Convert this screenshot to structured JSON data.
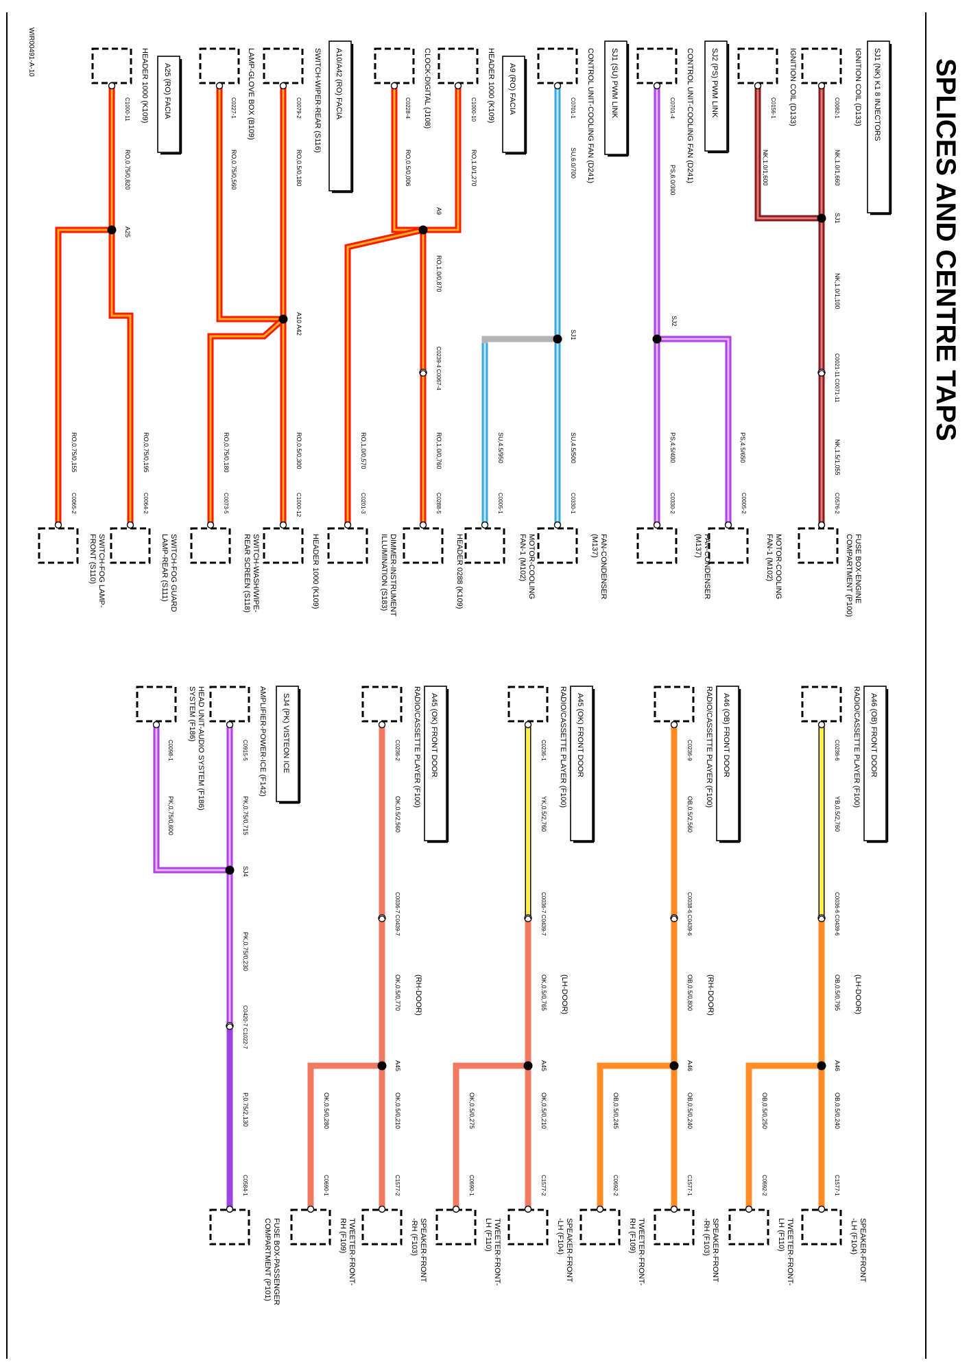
{
  "page": {
    "title": "SPLICES AND CENTRE TAPS",
    "code": "WIR00491-A-10"
  },
  "colors": {
    "red": "#ff1a00",
    "red_stripe": "#ffb020",
    "blue": "#3aa9e0",
    "blue_stripe": "#bde6f7",
    "purple": "#b040e8",
    "purple_stripe": "#e5b8f8",
    "maroon": "#8a1c1c",
    "maroon_stripe": "#e07c7c",
    "orange": "#ff8c26",
    "orange_edge": "#000000",
    "salmon": "#f07a62",
    "yellow": "#fff03a",
    "grey": "#b4b4b4"
  },
  "circuits": [
    {
      "name": "SJ1 (NK) K1 8 INJECTORS",
      "top": "IGNITION COIL (D133)",
      "top_pin": "C0082-1",
      "wire_top": "NK,1.0/1,660",
      "splice": "SJ1",
      "wire_mid": "NK,1.0/1,100",
      "inline": "C0021-11 C0071-11",
      "wire_bottom": "NK,1.5/1,055",
      "bottom_pin": "C0576-2",
      "bottom": [
        "FUSE BOX-ENGINE",
        "COMPARTMENT (P100)"
      ]
    },
    {
      "name": "",
      "top": "IGNITION COIL (D133)",
      "top_pin": "C0156-1",
      "wire_top": "NK,1.0/1,600"
    },
    {
      "name": "SJ2 (PS) PWM LINK",
      "top": "CONTROL UNIT-COOLING FAN (D241)",
      "top_pin": "C0701-4",
      "wire_top": "PS,6.0/300",
      "splice": "SJ2",
      "wire_bottom": "PS,4.5/400",
      "bottom_pin": "C0330-2",
      "bottom": [
        "FAN-CONDENSER",
        "(M137)"
      ],
      "branch_wire": "PS,4.5/650",
      "branch_pin": "C0005-2",
      "branch": [
        "MOTOR-COOLING",
        "FAN-1 (M102)"
      ]
    },
    {
      "name": "SJ1 (SU) PWM LINK",
      "top": "CONTROL UNIT-COOLING FAN (D241)",
      "top_pin": "C0701-1",
      "wire_top": "SU,6.0/700",
      "splice": "SJ1",
      "wire_bottom": "SU,4.5/500",
      "bottom_pin": "C0330-1",
      "bottom": [
        "FAN-CONDENSER",
        "(M137)"
      ],
      "branch_wire": "SU,4.5/950",
      "branch_pin": "C0005-1",
      "branch": [
        "MOTOR-COOLING",
        "FAN-1 (M102)"
      ]
    },
    {
      "name": "A9 (RO) FACIA",
      "top": "HEADER 1000 (K109)",
      "top_pin": "C1000-10",
      "wire_top": "RO,1.0/1,270",
      "splice": "A9",
      "wire_mid": "RO,1.0/0,870",
      "inline": "C0239-4 C0067-4",
      "wire_bottom": "RO,1.0/0,760",
      "bottom_pin": "C0288-5",
      "bottom": [
        "HEADER 0288 (K109)"
      ]
    },
    {
      "name": "",
      "top": "CLOCK-DIGITAL (J108)",
      "top_pin": "C0228-4",
      "wire_top": "RO,0.5/0,006",
      "branch_wire": "RO,1.0/0,570",
      "branch_pin": "C0201-3",
      "branch": [
        "DIMMER-INSTRUMENT",
        "ILLUMINATION (S183)"
      ]
    },
    {
      "name": "A10/A42 (RO) FACIA",
      "top": "SWITCH-WIPER-REAR (S116)",
      "top_pin": "C0079-2",
      "wire_top": "RO,0.5/0,180",
      "splice": "A10 A42",
      "wire_bottom": "RO,0.5/0,300",
      "bottom_pin": "C1000-12",
      "bottom": [
        "HEADER 1000 (K109)"
      ],
      "branch_wire": "RO,0.75/0,180",
      "branch_pin": "C0073-5",
      "branch": [
        "SWITCH-WASH/WIPE-",
        "REAR SCREEN (S118)"
      ]
    },
    {
      "name": "",
      "top": "LAMP-GLOVE BOX (B109)",
      "top_pin": "C0227-1",
      "wire_top": "RO,0.75/0,560"
    },
    {
      "name": "A25 (RO) FACIA",
      "top": "HEADER 1000 (K109)",
      "top_pin": "C1000-11",
      "wire_top": "RO,0.75/0,820",
      "splice": "A25",
      "wire_bottom": "RO,0.75/0,195",
      "bottom_pin": "C0064-2",
      "bottom": [
        "SWITCH-FOG GUARD",
        "LAMP-REAR (S111)"
      ],
      "branch_wire": "RO,0.75/0,155",
      "branch_pin": "C0065-2",
      "branch": [
        "SWITCH-FOG LAMP-",
        "FRONT (S110)"
      ]
    },
    {
      "name": "A46 (OB) FRONT DOOR",
      "top": "RADIO/CASSETTE PLAYER (F100)",
      "top_pin": "C0236-6",
      "wire_top": "YB,0.5/2,760",
      "inline": "C0036-6 C0439-6",
      "note": "(LH-DOOR)",
      "wire_mid": "OB,0.5/0,795",
      "splice": "A46",
      "wire_bottom": "OB,0.5/0,240",
      "bottom_pin": "C1577-1",
      "bottom": [
        "SPEAKER-FRONT",
        "-LH (F104)"
      ],
      "branch_wire": "OB,0.5/0,250",
      "branch_pin": "C0692-2",
      "branch": [
        "TWEETER-FRONT-",
        "LH (F110)"
      ]
    },
    {
      "name": "A46 (OB) FRONT DOOR",
      "top": "RADIO/CASSETTE PLAYER (F100)",
      "top_pin": "C0236-9",
      "wire_top": "OB,0.5/2,560",
      "inline": "C0038-6 C0439-6",
      "note": "(RH-DOOR)",
      "wire_mid": "OB,0.5/0,800",
      "splice": "A46",
      "wire_bottom": "OB,0.5/0,240",
      "bottom_pin": "C1577-1",
      "bottom": [
        "SPEAKER-FRONT",
        "-RH (F103)"
      ],
      "branch_wire": "OB,0.5/0,245",
      "branch_pin": "C0692-2",
      "branch": [
        "TWEETER-FRONT-",
        "RH (F109)"
      ]
    },
    {
      "name": "A45 (OK) FRONT DOOR",
      "top": "RADIO/CASSETTE PLAYER (F100)",
      "top_pin": "C0236-1",
      "wire_top": "YK,0.5/2,760",
      "inline": "C0036-7 C0439-7",
      "note": "(LH-DOOR)",
      "wire_mid": "OK,0.5/0,765",
      "splice": "A45",
      "wire_bottom": "OK,0.5/0,210",
      "bottom_pin": "C1577-2",
      "bottom": [
        "SPEAKER-FRONT",
        "-LH (F104)"
      ],
      "branch_wire": "OK,0.5/0,275",
      "branch_pin": "C0690-1",
      "branch": [
        "TWEETER-FRONT-",
        "LH (F110)"
      ]
    },
    {
      "name": "A45 (OK) FRONT DOOR",
      "top": "RADIO/CASSETTE PLAYER (F100)",
      "top_pin": "C0236-2",
      "wire_top": "OK,0.5/2,560",
      "inline": "C0036-7 C0439-7",
      "note": "(RH-DOOR)",
      "wire_mid": "OK,0.5/0,770",
      "splice": "A45",
      "wire_bottom": "OK,0.5/0,210",
      "bottom_pin": "C1577-2",
      "bottom": [
        "SPEAKER-FRONT",
        "-RH (F103)"
      ],
      "branch_wire": "OK,0.5/0,280",
      "branch_pin": "C0690-1",
      "branch": [
        "TWEETER-FRONT-",
        "RH (F109)"
      ]
    },
    {
      "name": "SJ4 (PK) VISTEON ICE",
      "top": "AMPLIFIER-POWER-ICE (F142)",
      "top_pin": "C0915-5",
      "wire_top": "PK,0.75/0,715",
      "splice": "SJ4",
      "wire_mid": "PK,0.75/0,230",
      "inline": "C0420-7 C1022-7",
      "wire_bottom": "P,0.75/2,130",
      "bottom_pin": "C0584-1",
      "bottom": [
        "FUSE BOX-PASSENGER",
        "COMPARTMENT (P101)"
      ]
    },
    {
      "name": "",
      "top": "HEAD UNIT-AUDIO SYSTEM (F186)",
      "top_pin": "C0098-1",
      "wire_top": "PK,0.75/0,600"
    }
  ]
}
